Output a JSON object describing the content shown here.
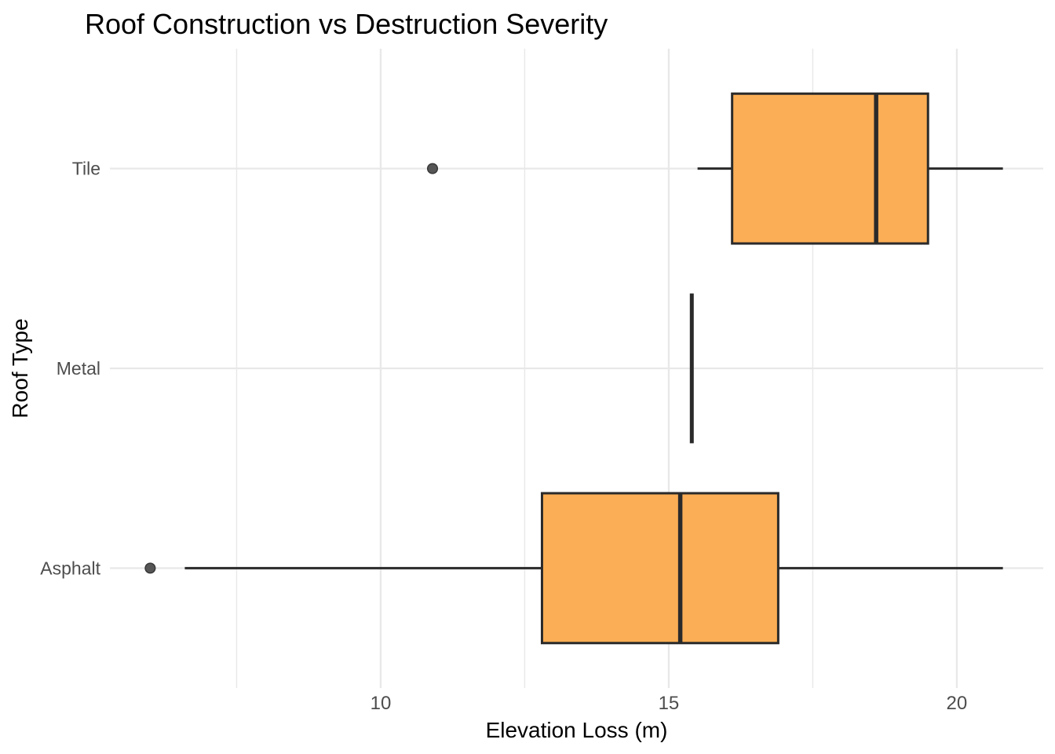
{
  "chart_data": {
    "type": "boxplot",
    "orientation": "horizontal",
    "title": "Roof Construction vs Destruction Severity",
    "xlabel": "Elevation Loss (m)",
    "ylabel": "Roof Type",
    "categories_top_to_bottom": [
      "Tile",
      "Metal",
      "Asphalt"
    ],
    "xlim": [
      5.3,
      21.5
    ],
    "x_major_ticks": [
      10,
      15,
      20
    ],
    "x_minor_ticks": [
      7.5,
      12.5,
      17.5
    ],
    "grid": "major and minor vertical lines plus one horizontal line per category, light gray, no axis lines, no tick marks",
    "legend": "none",
    "series": [
      {
        "category": "Tile",
        "whisker_low": 15.5,
        "q1": 16.1,
        "median": 18.6,
        "q3": 19.5,
        "whisker_high": 20.8,
        "outliers": [
          10.9
        ]
      },
      {
        "category": "Metal",
        "whisker_low": 15.4,
        "q1": 15.4,
        "median": 15.4,
        "q3": 15.4,
        "whisker_high": 15.4,
        "outliers": []
      },
      {
        "category": "Asphalt",
        "whisker_low": 6.6,
        "q1": 12.8,
        "median": 15.2,
        "q3": 16.9,
        "whisker_high": 20.8,
        "outliers": [
          6.0
        ]
      }
    ],
    "colors": {
      "background": "#FFFFFF",
      "box_fill": "#FBAE55",
      "box_stroke": "#2A2A2A",
      "median_stroke": "#2A2A2A",
      "whisker_stroke": "#2A2A2A",
      "outlier_fill": "#565656",
      "outlier_stroke": "#383838",
      "grid": "#E8E8E8",
      "tick_label": "#4D4D4D",
      "axis_title": "#000000",
      "title": "#000000"
    }
  }
}
